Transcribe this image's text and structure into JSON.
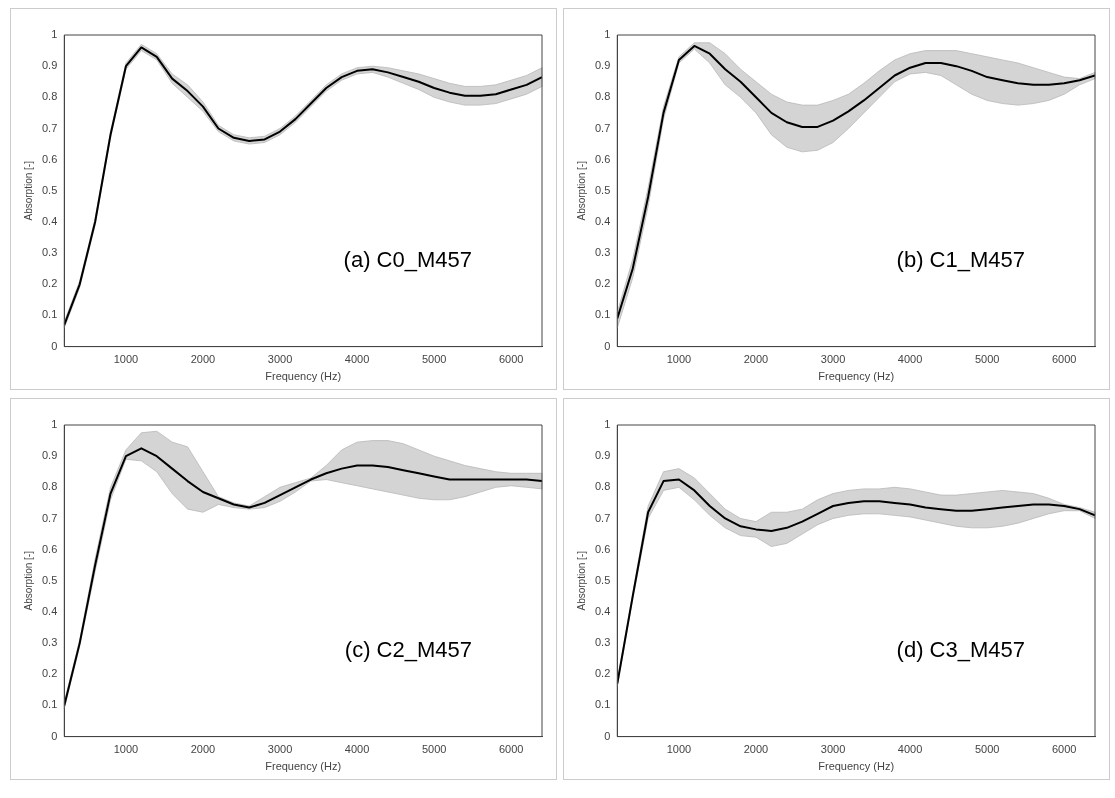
{
  "chart_data": [
    {
      "type": "line",
      "xlabel": "Frequency (Hz)",
      "ylabel": "Absorption [-]",
      "annotations": [
        "(a) C0_M457"
      ],
      "x": [
        200,
        400,
        600,
        800,
        1000,
        1200,
        1400,
        1600,
        1800,
        2000,
        2200,
        2400,
        2600,
        2800,
        3000,
        3200,
        3400,
        3600,
        3800,
        4000,
        4200,
        4400,
        4600,
        4800,
        5000,
        5200,
        5400,
        5600,
        5800,
        6000,
        6200,
        6400
      ],
      "series": [
        {
          "color": "#000000",
          "values": [
            0.07,
            0.2,
            0.4,
            0.68,
            0.9,
            0.96,
            0.93,
            0.86,
            0.82,
            0.77,
            0.7,
            0.67,
            0.66,
            0.665,
            0.69,
            0.73,
            0.78,
            0.83,
            0.865,
            0.885,
            0.89,
            0.88,
            0.865,
            0.85,
            0.83,
            0.815,
            0.805,
            0.805,
            0.81,
            0.825,
            0.84,
            0.865
          ],
          "lower": [
            0.06,
            0.19,
            0.39,
            0.67,
            0.89,
            0.95,
            0.92,
            0.845,
            0.8,
            0.755,
            0.69,
            0.66,
            0.65,
            0.655,
            0.68,
            0.72,
            0.77,
            0.82,
            0.855,
            0.875,
            0.88,
            0.865,
            0.845,
            0.825,
            0.8,
            0.785,
            0.775,
            0.775,
            0.78,
            0.795,
            0.81,
            0.835
          ],
          "upper": [
            0.08,
            0.21,
            0.41,
            0.69,
            0.91,
            0.97,
            0.94,
            0.875,
            0.84,
            0.785,
            0.71,
            0.68,
            0.67,
            0.675,
            0.7,
            0.74,
            0.79,
            0.84,
            0.875,
            0.895,
            0.9,
            0.895,
            0.885,
            0.875,
            0.86,
            0.845,
            0.835,
            0.835,
            0.84,
            0.855,
            0.87,
            0.895
          ]
        }
      ],
      "xlim": [
        200,
        6400
      ],
      "xticks": [
        1000,
        2000,
        3000,
        4000,
        5000,
        6000
      ],
      "ylim": [
        0,
        1
      ],
      "yticks": [
        0,
        0.1,
        0.2,
        0.3,
        0.4,
        0.5,
        0.6,
        0.7,
        0.8,
        0.9,
        1
      ]
    },
    {
      "type": "line",
      "xlabel": "Frequency (Hz)",
      "ylabel": "Absorption [-]",
      "annotations": [
        "(b) C1_M457"
      ],
      "x": [
        200,
        400,
        600,
        800,
        1000,
        1200,
        1400,
        1600,
        1800,
        2000,
        2200,
        2400,
        2600,
        2800,
        3000,
        3200,
        3400,
        3600,
        3800,
        4000,
        4200,
        4400,
        4600,
        4800,
        5000,
        5200,
        5400,
        5600,
        5800,
        6000,
        6200,
        6400
      ],
      "series": [
        {
          "color": "#000000",
          "values": [
            0.09,
            0.25,
            0.48,
            0.75,
            0.92,
            0.965,
            0.94,
            0.89,
            0.85,
            0.8,
            0.75,
            0.72,
            0.705,
            0.705,
            0.725,
            0.755,
            0.79,
            0.83,
            0.87,
            0.895,
            0.91,
            0.91,
            0.9,
            0.885,
            0.865,
            0.855,
            0.845,
            0.84,
            0.84,
            0.845,
            0.855,
            0.87
          ],
          "lower": [
            0.06,
            0.22,
            0.45,
            0.73,
            0.91,
            0.955,
            0.91,
            0.84,
            0.8,
            0.75,
            0.68,
            0.64,
            0.625,
            0.63,
            0.655,
            0.7,
            0.75,
            0.8,
            0.85,
            0.875,
            0.88,
            0.87,
            0.84,
            0.81,
            0.79,
            0.78,
            0.775,
            0.78,
            0.79,
            0.81,
            0.84,
            0.86
          ],
          "upper": [
            0.11,
            0.28,
            0.51,
            0.77,
            0.93,
            0.975,
            0.975,
            0.94,
            0.89,
            0.85,
            0.81,
            0.785,
            0.775,
            0.775,
            0.79,
            0.81,
            0.845,
            0.885,
            0.92,
            0.94,
            0.95,
            0.95,
            0.95,
            0.94,
            0.93,
            0.92,
            0.91,
            0.895,
            0.88,
            0.865,
            0.86,
            0.88
          ]
        }
      ],
      "xlim": [
        200,
        6400
      ],
      "xticks": [
        1000,
        2000,
        3000,
        4000,
        5000,
        6000
      ],
      "ylim": [
        0,
        1
      ],
      "yticks": [
        0,
        0.1,
        0.2,
        0.3,
        0.4,
        0.5,
        0.6,
        0.7,
        0.8,
        0.9,
        1
      ]
    },
    {
      "type": "line",
      "xlabel": "Frequency (Hz)",
      "ylabel": "Absorption [-]",
      "annotations": [
        "(c) C2_M457"
      ],
      "x": [
        200,
        400,
        600,
        800,
        1000,
        1200,
        1400,
        1600,
        1800,
        2000,
        2200,
        2400,
        2600,
        2800,
        3000,
        3200,
        3400,
        3600,
        3800,
        4000,
        4200,
        4400,
        4600,
        4800,
        5000,
        5200,
        5400,
        5600,
        5800,
        6000,
        6200,
        6400
      ],
      "series": [
        {
          "color": "#000000",
          "values": [
            0.1,
            0.3,
            0.55,
            0.78,
            0.9,
            0.925,
            0.9,
            0.86,
            0.82,
            0.785,
            0.765,
            0.745,
            0.735,
            0.75,
            0.775,
            0.8,
            0.825,
            0.845,
            0.86,
            0.87,
            0.87,
            0.865,
            0.855,
            0.845,
            0.835,
            0.825,
            0.825,
            0.825,
            0.825,
            0.825,
            0.825,
            0.82
          ],
          "lower": [
            0.09,
            0.29,
            0.53,
            0.76,
            0.89,
            0.885,
            0.85,
            0.78,
            0.73,
            0.72,
            0.745,
            0.735,
            0.73,
            0.735,
            0.755,
            0.785,
            0.82,
            0.825,
            0.815,
            0.805,
            0.795,
            0.785,
            0.775,
            0.765,
            0.76,
            0.76,
            0.77,
            0.785,
            0.8,
            0.805,
            0.8,
            0.795
          ],
          "upper": [
            0.11,
            0.31,
            0.57,
            0.8,
            0.92,
            0.975,
            0.98,
            0.945,
            0.93,
            0.85,
            0.77,
            0.75,
            0.74,
            0.77,
            0.8,
            0.815,
            0.83,
            0.87,
            0.92,
            0.945,
            0.95,
            0.95,
            0.94,
            0.92,
            0.9,
            0.885,
            0.87,
            0.86,
            0.85,
            0.845,
            0.845,
            0.845
          ]
        }
      ],
      "xlim": [
        200,
        6400
      ],
      "xticks": [
        1000,
        2000,
        3000,
        4000,
        5000,
        6000
      ],
      "ylim": [
        0,
        1
      ],
      "yticks": [
        0,
        0.1,
        0.2,
        0.3,
        0.4,
        0.5,
        0.6,
        0.7,
        0.8,
        0.9,
        1
      ]
    },
    {
      "type": "line",
      "xlabel": "Frequency (Hz)",
      "ylabel": "Absorption [-]",
      "annotations": [
        "(d) C3_M457"
      ],
      "x": [
        200,
        400,
        600,
        800,
        1000,
        1200,
        1400,
        1600,
        1800,
        2000,
        2200,
        2400,
        2600,
        2800,
        3000,
        3200,
        3400,
        3600,
        3800,
        4000,
        4200,
        4400,
        4600,
        4800,
        5000,
        5200,
        5400,
        5600,
        5800,
        6000,
        6200,
        6400
      ],
      "series": [
        {
          "color": "#000000",
          "values": [
            0.17,
            0.45,
            0.72,
            0.82,
            0.825,
            0.79,
            0.74,
            0.7,
            0.675,
            0.665,
            0.66,
            0.67,
            0.69,
            0.715,
            0.74,
            0.75,
            0.755,
            0.755,
            0.75,
            0.745,
            0.735,
            0.73,
            0.725,
            0.725,
            0.73,
            0.735,
            0.74,
            0.745,
            0.745,
            0.74,
            0.73,
            0.71
          ],
          "lower": [
            0.16,
            0.44,
            0.7,
            0.79,
            0.8,
            0.76,
            0.71,
            0.67,
            0.645,
            0.64,
            0.61,
            0.62,
            0.65,
            0.68,
            0.7,
            0.71,
            0.715,
            0.715,
            0.71,
            0.705,
            0.695,
            0.685,
            0.675,
            0.67,
            0.67,
            0.675,
            0.685,
            0.7,
            0.715,
            0.725,
            0.725,
            0.7
          ],
          "upper": [
            0.18,
            0.46,
            0.74,
            0.85,
            0.86,
            0.83,
            0.78,
            0.73,
            0.7,
            0.69,
            0.72,
            0.72,
            0.73,
            0.76,
            0.78,
            0.79,
            0.795,
            0.795,
            0.8,
            0.795,
            0.785,
            0.775,
            0.775,
            0.78,
            0.785,
            0.79,
            0.785,
            0.78,
            0.765,
            0.745,
            0.735,
            0.72
          ]
        }
      ],
      "xlim": [
        200,
        6400
      ],
      "xticks": [
        1000,
        2000,
        3000,
        4000,
        5000,
        6000
      ],
      "ylim": [
        0,
        1
      ],
      "yticks": [
        0,
        0.1,
        0.2,
        0.3,
        0.4,
        0.5,
        0.6,
        0.7,
        0.8,
        0.9,
        1
      ]
    }
  ]
}
